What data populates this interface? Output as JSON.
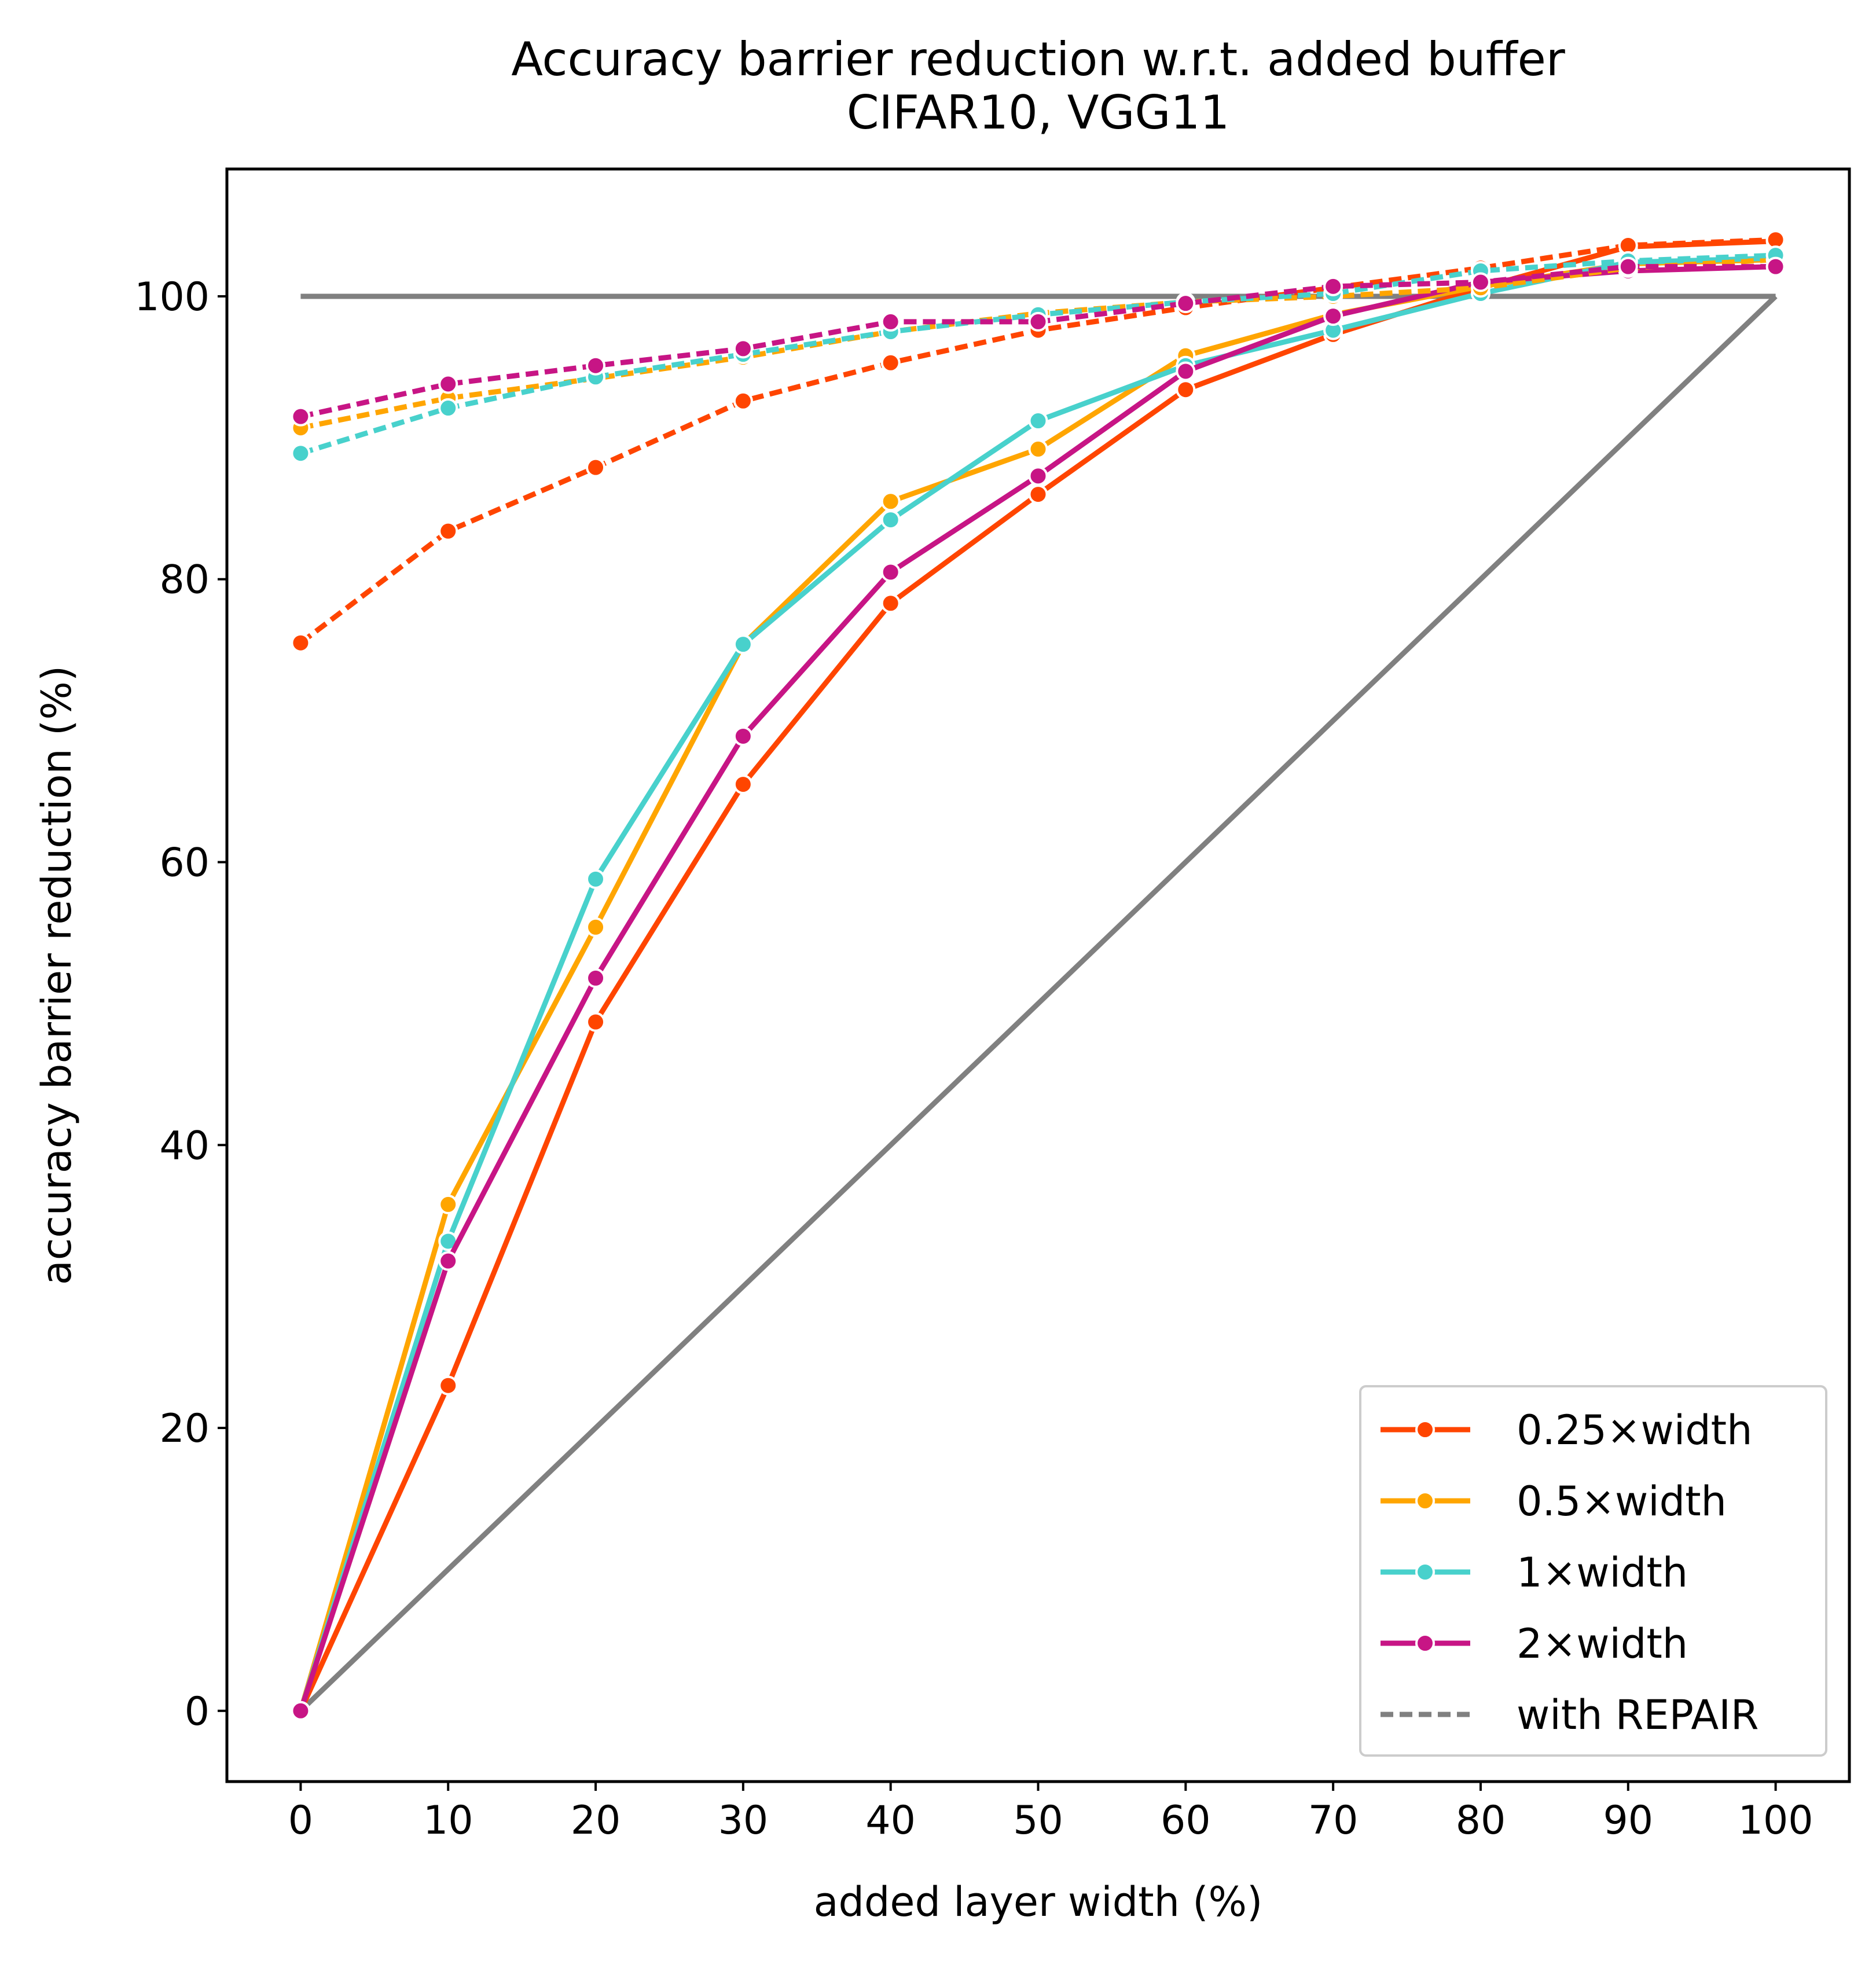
{
  "chart_data": {
    "type": "line",
    "title": [
      "Accuracy barrier reduction w.r.t. added buffer",
      "CIFAR10, VGG11"
    ],
    "xlabel": "added layer width (%)",
    "ylabel": "accuracy barrier reduction (%)",
    "xlim": [
      -5,
      105
    ],
    "ylim": [
      -5,
      109
    ],
    "x_ticks": [
      0,
      10,
      20,
      30,
      40,
      50,
      60,
      70,
      80,
      90,
      100
    ],
    "y_ticks": [
      0,
      20,
      40,
      60,
      80,
      100
    ],
    "grid": false,
    "legend_position": "bottom-right",
    "x": [
      0,
      10,
      20,
      30,
      40,
      50,
      60,
      70,
      80,
      90,
      100
    ],
    "series": [
      {
        "name": "0.25×width",
        "color": "#ff4500",
        "style": "solid",
        "values": [
          0,
          23,
          48.7,
          65.5,
          78.3,
          86,
          93.4,
          97.3,
          100.6,
          103.5,
          103.9
        ]
      },
      {
        "name": "0.5×width",
        "color": "#ffa500",
        "style": "solid",
        "values": [
          0,
          35.8,
          55.4,
          75.4,
          85.5,
          89.2,
          95.8,
          98.7,
          100.7,
          102.3,
          102.6
        ]
      },
      {
        "name": "1×width",
        "color": "#48d1cc",
        "style": "solid",
        "values": [
          0,
          33.2,
          58.8,
          75.4,
          84.2,
          91.2,
          95.1,
          97.6,
          100.2,
          102.4,
          102.7
        ]
      },
      {
        "name": "2×width",
        "color": "#c71585",
        "style": "solid",
        "values": [
          0,
          31.8,
          51.8,
          68.9,
          80.5,
          87.3,
          94.7,
          98.6,
          101,
          101.8,
          102.1
        ]
      },
      {
        "name": "0.25×width",
        "color": "#ff4500",
        "style": "dashed",
        "repair": true,
        "values": [
          75.5,
          83.4,
          87.9,
          92.6,
          95.3,
          97.6,
          99.2,
          100.6,
          102,
          103.6,
          104
        ]
      },
      {
        "name": "0.5×width",
        "color": "#ffa500",
        "style": "dashed",
        "repair": true,
        "values": [
          90.7,
          92.8,
          94.2,
          95.7,
          97.5,
          98.8,
          99.6,
          100,
          100.6,
          102,
          102.6
        ]
      },
      {
        "name": "1×width",
        "color": "#48d1cc",
        "style": "dashed",
        "repair": true,
        "values": [
          88.9,
          92.1,
          94.3,
          95.9,
          97.5,
          98.7,
          99.6,
          100.2,
          101.8,
          102.5,
          102.9
        ]
      },
      {
        "name": "2×width",
        "color": "#c71585",
        "style": "dashed",
        "repair": true,
        "values": [
          91.5,
          93.8,
          95.1,
          96.3,
          98.2,
          98.2,
          99.5,
          100.7,
          101,
          102.1,
          102.1
        ]
      }
    ],
    "reference_lines": [
      {
        "color": "#808080",
        "x": [
          0,
          100
        ],
        "values": [
          100,
          100
        ]
      },
      {
        "color": "#808080",
        "x": [
          0,
          100
        ],
        "values": [
          0,
          100
        ]
      }
    ],
    "legend": [
      {
        "label": "0.25×width",
        "color": "#ff4500",
        "style": "solid",
        "marker": true
      },
      {
        "label": "0.5×width",
        "color": "#ffa500",
        "style": "solid",
        "marker": true
      },
      {
        "label": "1×width",
        "color": "#48d1cc",
        "style": "solid",
        "marker": true
      },
      {
        "label": "2×width",
        "color": "#c71585",
        "style": "solid",
        "marker": true
      },
      {
        "label": "with REPAIR",
        "color": "#808080",
        "style": "dotted",
        "marker": false
      }
    ]
  }
}
